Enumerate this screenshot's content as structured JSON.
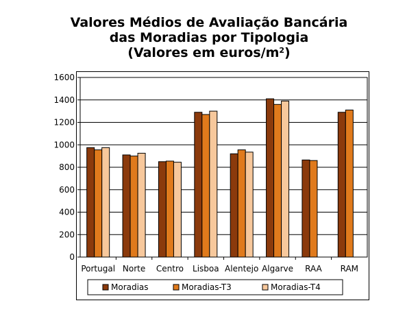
{
  "chart_data": {
    "type": "bar",
    "title_line1": "Valores Médios de Avaliação Bancária",
    "title_line2": "das Moradias por Tipologia",
    "title_line3_main": "(Valores em euros/m",
    "title_line3_sup": "2",
    "title_line3_end": ")",
    "categories": [
      "Portugal",
      "Norte",
      "Centro",
      "Lisboa",
      "Alentejo",
      "Algarve",
      "RAA",
      "RAM"
    ],
    "series": [
      {
        "name": "Moradias",
        "color": "#8B3A0C",
        "values": [
          975,
          910,
          850,
          1290,
          920,
          1410,
          865,
          1290
        ]
      },
      {
        "name": "Moradias-T3",
        "color": "#E07A1C",
        "values": [
          955,
          900,
          855,
          1270,
          955,
          1360,
          860,
          1310
        ]
      },
      {
        "name": "Moradias-T4",
        "color": "#F7C89C",
        "values": [
          975,
          925,
          845,
          1300,
          935,
          1390,
          null,
          null
        ]
      }
    ],
    "ylim": [
      0,
      1600
    ],
    "yticks": [
      0,
      200,
      400,
      600,
      800,
      1000,
      1200,
      1400,
      1600
    ],
    "grid": true,
    "legend_position": "bottom"
  }
}
